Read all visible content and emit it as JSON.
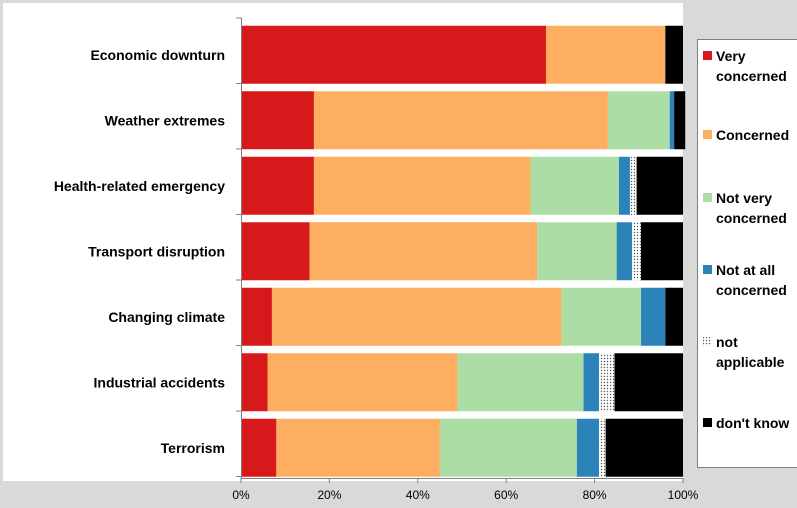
{
  "chart_data": {
    "type": "bar",
    "orientation": "horizontal",
    "stacked": "percent",
    "categories": [
      "Economic downturn",
      "Weather extremes",
      "Health-related emergency",
      "Transport disruption",
      "Changing climate",
      "Industrial accidents",
      "Terrorism"
    ],
    "x_ticks": [
      "0%",
      "20%",
      "40%",
      "60%",
      "80%",
      "100%"
    ],
    "xlim": [
      0,
      100
    ],
    "grid": false,
    "legend_position": "right",
    "series": [
      {
        "name": "Very concerned",
        "label_lines": [
          "Very",
          "concerned"
        ],
        "color": "#d7191c",
        "pattern": "solid",
        "values": [
          69,
          16.5,
          16.5,
          15.5,
          7,
          6,
          8
        ]
      },
      {
        "name": "Concerned",
        "label_lines": [
          "Concerned"
        ],
        "color": "#fdae61",
        "pattern": "solid",
        "values": [
          27,
          66.5,
          49,
          51.5,
          65.5,
          43,
          37
        ]
      },
      {
        "name": "Not very concerned",
        "label_lines": [
          "Not very",
          "concerned"
        ],
        "color": "#abdda4",
        "pattern": "solid",
        "values": [
          0,
          14,
          20,
          18,
          18,
          28.5,
          31
        ]
      },
      {
        "name": "Not at all concerned",
        "label_lines": [
          "Not at all",
          "concerned"
        ],
        "color": "#2b83ba",
        "pattern": "solid",
        "values": [
          0,
          1,
          2.5,
          3.5,
          5.5,
          3.5,
          5
        ]
      },
      {
        "name": "not applicable",
        "label_lines": [
          "not",
          "applicable"
        ],
        "color": "#ffffff",
        "pattern": "dotted",
        "values": [
          0,
          0,
          1.5,
          2,
          0,
          3.5,
          1.5
        ]
      },
      {
        "name": "don't know",
        "label_lines": [
          "don't know"
        ],
        "color": "#000000",
        "pattern": "solid",
        "values": [
          4,
          2.5,
          10.5,
          9.5,
          4,
          15.5,
          17.5
        ]
      }
    ]
  },
  "colors": {
    "plot_background": "#ffffff",
    "outer_background": "#d9d9d9",
    "axis": "#7f7f7f"
  }
}
